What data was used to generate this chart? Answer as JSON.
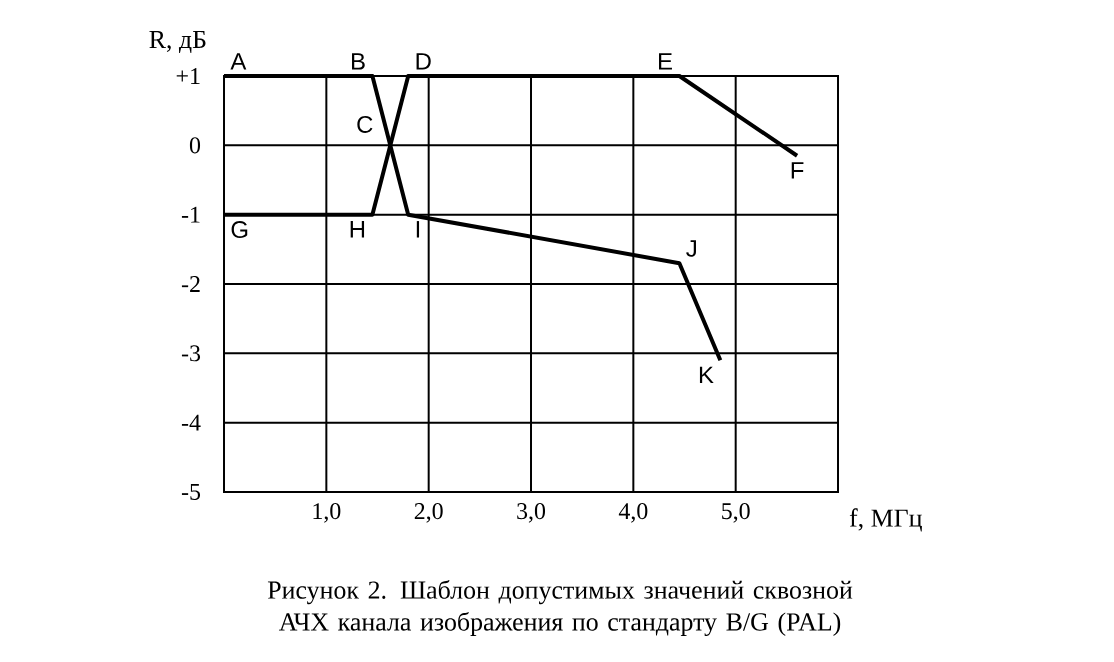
{
  "chart_data": {
    "type": "line",
    "xlabel": "f, МГц",
    "ylabel": "R, дБ",
    "xlim": [
      0,
      6
    ],
    "ylim": [
      -5,
      1
    ],
    "xticks": [
      {
        "value": 1,
        "label": "1,0"
      },
      {
        "value": 2,
        "label": "2,0"
      },
      {
        "value": 3,
        "label": "3,0"
      },
      {
        "value": 4,
        "label": "4,0"
      },
      {
        "value": 5,
        "label": "5,0"
      }
    ],
    "yticks": [
      {
        "value": 1,
        "label": "+1"
      },
      0,
      -1,
      -2,
      -3,
      -4,
      -5
    ],
    "grid": true,
    "marker": "none",
    "line_style": "solid",
    "series": [
      {
        "color": "#000000",
        "x": [
          0,
          1.45,
          1.8,
          4.45,
          4.85
        ],
        "values": [
          1,
          1,
          -1,
          -1.7,
          -3.1
        ]
      },
      {
        "color": "#000000",
        "x": [
          0,
          1.45,
          1.8,
          4.45,
          5.6
        ],
        "values": [
          -1,
          -1,
          1,
          1,
          -0.15
        ]
      }
    ],
    "annotations": [
      {
        "text": "A",
        "x": 0,
        "y": 1
      },
      {
        "text": "B",
        "x": 1.45,
        "y": 1
      },
      {
        "text": "C",
        "x": 1.62,
        "y": 0
      },
      {
        "text": "D",
        "x": 1.8,
        "y": 1
      },
      {
        "text": "E",
        "x": 4.45,
        "y": 1
      },
      {
        "text": "F",
        "x": 5.6,
        "y": -0.15
      },
      {
        "text": "G",
        "x": 0,
        "y": -1
      },
      {
        "text": "H",
        "x": 1.45,
        "y": -1
      },
      {
        "text": "I",
        "x": 1.8,
        "y": -1
      },
      {
        "text": "J",
        "x": 4.45,
        "y": -1.7
      },
      {
        "text": "K",
        "x": 4.85,
        "y": -3.1
      },
      "Рисунок 2. Шаблон допустимых значений сквозной АЧХ канала изображения по стандарту B/G (PAL)"
    ]
  }
}
